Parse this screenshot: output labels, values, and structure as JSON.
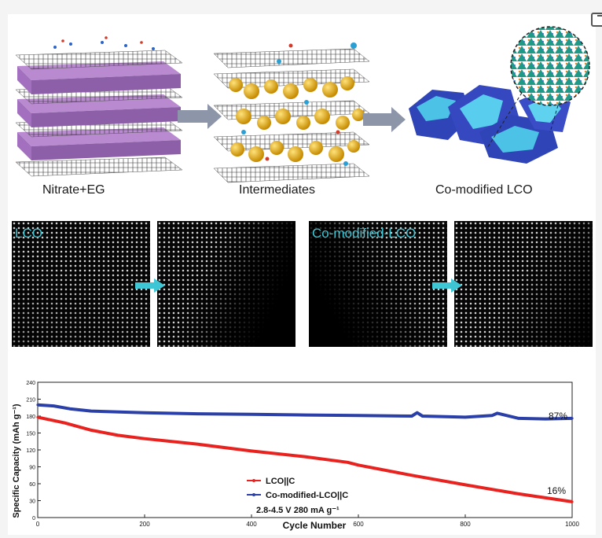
{
  "schematic": {
    "labels": [
      "Nitrate+EG",
      "Intermediates",
      "Co-modified LCO"
    ]
  },
  "tem": {
    "labels": [
      "LCO",
      "Co-modified-LCO"
    ]
  },
  "chart_data": {
    "type": "line",
    "xlabel": "Cycle Number",
    "ylabel": "Specific Capacity (mAh g⁻¹)",
    "xlim": [
      0,
      1000
    ],
    "ylim": [
      0,
      240
    ],
    "xticks": [
      0,
      200,
      400,
      600,
      800,
      1000
    ],
    "yticks": [
      0,
      30,
      60,
      90,
      120,
      150,
      180,
      210,
      240
    ],
    "grid": false,
    "legend_position": "center",
    "series": [
      {
        "name": "LCO||C",
        "color": "#e8221f",
        "x": [
          0,
          50,
          100,
          150,
          200,
          300,
          400,
          500,
          580,
          600,
          700,
          800,
          900,
          1000
        ],
        "y": [
          178,
          168,
          155,
          146,
          140,
          130,
          118,
          108,
          98,
          93,
          75,
          58,
          42,
          28
        ]
      },
      {
        "name": "Co-modified-LCO||C",
        "color": "#2a3fa8",
        "x": [
          0,
          30,
          60,
          100,
          200,
          300,
          400,
          500,
          600,
          700,
          710,
          720,
          800,
          850,
          860,
          900,
          950,
          1000
        ],
        "y": [
          200,
          198,
          193,
          189,
          186,
          184,
          183,
          182,
          181,
          180,
          186,
          180,
          178,
          181,
          185,
          176,
          175,
          176
        ]
      }
    ],
    "annotations": [
      "87%",
      "16%",
      "2.8-4.5 V  280 mA g⁻¹"
    ]
  }
}
